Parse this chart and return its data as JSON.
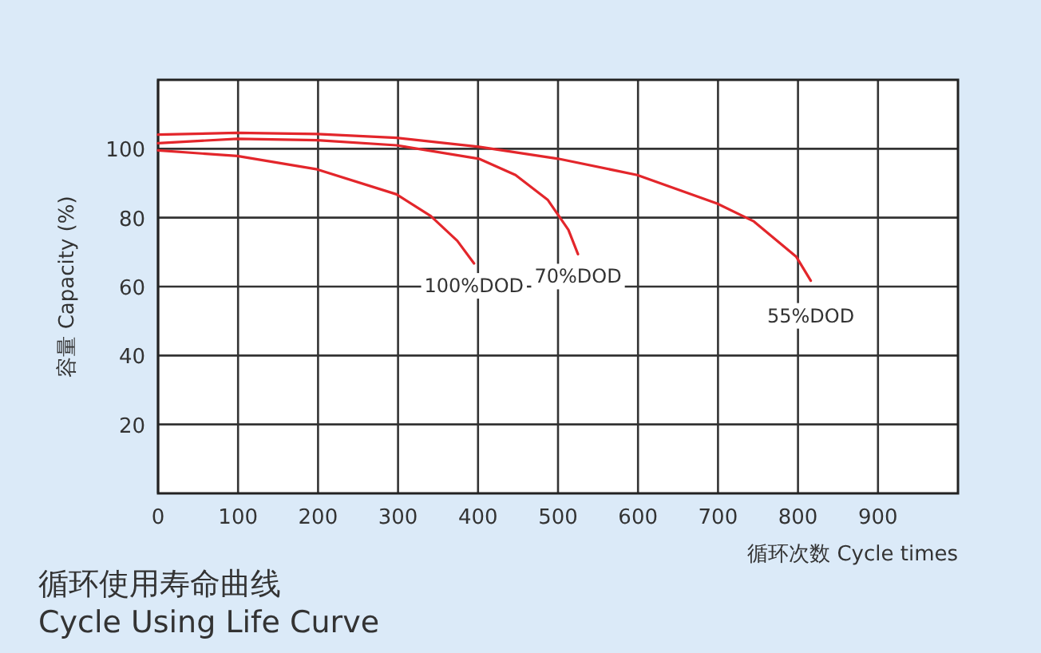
{
  "chart_data": {
    "type": "line",
    "title": "循环使用寿命曲线",
    "subtitle": "Cycle Using Life Curve",
    "xlabel": "循环次数 Cycle times",
    "ylabel": "容量 Capacity (%)",
    "xlim": [
      0,
      1000
    ],
    "ylim": [
      0,
      120
    ],
    "xticks": [
      0,
      100,
      200,
      300,
      400,
      500,
      600,
      700,
      800,
      900
    ],
    "yticks": [
      20,
      40,
      60,
      80,
      100
    ],
    "grid": true,
    "line_style": "solid",
    "series": [
      {
        "name": "100%DOD",
        "color": "#e3262b",
        "x": [
          0,
          99,
          199,
          298,
          341,
          374,
          395
        ],
        "values": [
          99.5,
          97.9,
          94,
          86.8,
          80.5,
          73.3,
          66.7
        ]
      },
      {
        "name": "70%DOD",
        "color": "#e3262b",
        "x": [
          0,
          99,
          199,
          298,
          401,
          447,
          487,
          513,
          525
        ],
        "values": [
          101.6,
          102.9,
          102.5,
          101,
          97.1,
          92.4,
          85.2,
          76.5,
          69.4
        ]
      },
      {
        "name": "55%DOD",
        "color": "#e3262b",
        "x": [
          0,
          99,
          199,
          298,
          401,
          500,
          599,
          699,
          745,
          798,
          816
        ],
        "values": [
          104.1,
          104.6,
          104.3,
          103.2,
          100.6,
          97.1,
          92.4,
          84.1,
          78.9,
          68.6,
          61.7
        ]
      }
    ]
  }
}
